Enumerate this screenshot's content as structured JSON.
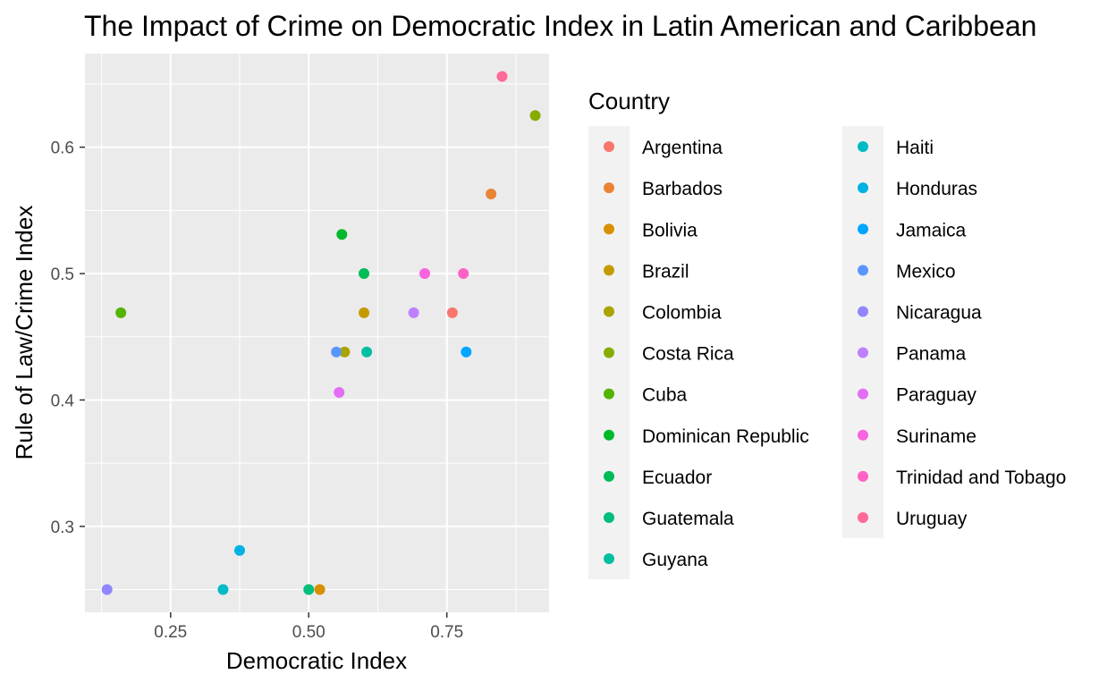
{
  "chart_data": {
    "type": "scatter",
    "title": "The Impact of Crime on Democratic Index in Latin American and Caribbean",
    "xlabel": "Democratic Index",
    "ylabel": "Rule of Law/Crime Index",
    "xlim": [
      0.095,
      0.935
    ],
    "ylim": [
      0.232,
      0.674
    ],
    "x_ticks": [
      0.25,
      0.5,
      0.75
    ],
    "x_tick_labels": [
      "0.25",
      "0.50",
      "0.75"
    ],
    "y_ticks": [
      0.3,
      0.4,
      0.5,
      0.6
    ],
    "y_tick_labels": [
      "0.3",
      "0.4",
      "0.5",
      "0.6"
    ],
    "grid": true,
    "legend": {
      "title": "Country",
      "placement": "right",
      "columns": 2
    },
    "series": [
      {
        "name": "Argentina",
        "color": "#F8766D",
        "points": [
          {
            "x": 0.76,
            "y": 0.469
          }
        ]
      },
      {
        "name": "Barbados",
        "color": "#EB8335",
        "points": [
          {
            "x": 0.83,
            "y": 0.563
          }
        ]
      },
      {
        "name": "Bolivia",
        "color": "#DA8F00",
        "points": [
          {
            "x": 0.52,
            "y": 0.25
          }
        ]
      },
      {
        "name": "Brazil",
        "color": "#C49A00",
        "points": [
          {
            "x": 0.6,
            "y": 0.469
          }
        ]
      },
      {
        "name": "Colombia",
        "color": "#A9A400",
        "points": [
          {
            "x": 0.565,
            "y": 0.438
          }
        ]
      },
      {
        "name": "Costa Rica",
        "color": "#86AC00",
        "points": [
          {
            "x": 0.91,
            "y": 0.625
          }
        ]
      },
      {
        "name": "Cuba",
        "color": "#53B400",
        "points": [
          {
            "x": 0.16,
            "y": 0.469
          }
        ]
      },
      {
        "name": "Dominican Republic",
        "color": "#00B92A",
        "points": [
          {
            "x": 0.56,
            "y": 0.531
          }
        ]
      },
      {
        "name": "Ecuador",
        "color": "#00BC56",
        "points": [
          {
            "x": 0.6,
            "y": 0.5
          }
        ]
      },
      {
        "name": "Guatemala",
        "color": "#00BE7D",
        "points": [
          {
            "x": 0.5,
            "y": 0.25
          }
        ]
      },
      {
        "name": "Guyana",
        "color": "#00BFA1",
        "points": [
          {
            "x": 0.605,
            "y": 0.438
          }
        ]
      },
      {
        "name": "Haiti",
        "color": "#00BBC4",
        "points": [
          {
            "x": 0.345,
            "y": 0.25
          }
        ]
      },
      {
        "name": "Honduras",
        "color": "#00B2E2",
        "points": [
          {
            "x": 0.375,
            "y": 0.281
          }
        ]
      },
      {
        "name": "Jamaica",
        "color": "#00A5FF",
        "points": [
          {
            "x": 0.785,
            "y": 0.438
          }
        ]
      },
      {
        "name": "Mexico",
        "color": "#5B95FF",
        "points": [
          {
            "x": 0.55,
            "y": 0.438
          }
        ]
      },
      {
        "name": "Nicaragua",
        "color": "#9186FF",
        "points": [
          {
            "x": 0.135,
            "y": 0.25
          }
        ]
      },
      {
        "name": "Panama",
        "color": "#BF80FF",
        "points": [
          {
            "x": 0.69,
            "y": 0.469
          }
        ]
      },
      {
        "name": "Paraguay",
        "color": "#E36EF6",
        "points": [
          {
            "x": 0.555,
            "y": 0.406
          }
        ]
      },
      {
        "name": "Suriname",
        "color": "#F863DF",
        "points": [
          {
            "x": 0.71,
            "y": 0.5
          }
        ]
      },
      {
        "name": "Trinidad and Tobago",
        "color": "#FF61C4",
        "points": [
          {
            "x": 0.78,
            "y": 0.5
          }
        ]
      },
      {
        "name": "Uruguay",
        "color": "#FF6A98",
        "points": [
          {
            "x": 0.85,
            "y": 0.656
          }
        ]
      }
    ]
  }
}
